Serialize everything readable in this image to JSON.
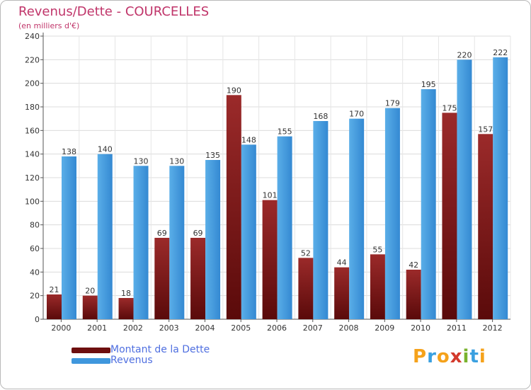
{
  "chart_data": {
    "type": "bar",
    "title": "Revenus/Dette - COURCELLES",
    "subtitle": "(en milliers d'€)",
    "categories": [
      "2000",
      "2001",
      "2002",
      "2003",
      "2004",
      "2005",
      "2006",
      "2007",
      "2008",
      "2009",
      "2010",
      "2011",
      "2012"
    ],
    "series": [
      {
        "name": "Montant de la Dette",
        "color": "#8b1a1a",
        "values": [
          21,
          20,
          18,
          69,
          69,
          190,
          101,
          52,
          44,
          55,
          42,
          175,
          157
        ]
      },
      {
        "name": "Revenus",
        "color": "#3f97dd",
        "values": [
          138,
          140,
          130,
          130,
          135,
          148,
          155,
          168,
          170,
          179,
          195,
          220,
          222
        ]
      }
    ],
    "ylim": [
      0,
      240
    ],
    "yticks": [
      0,
      20,
      40,
      60,
      80,
      100,
      120,
      140,
      160,
      180,
      200,
      220,
      240
    ],
    "grid": true,
    "legend_position": "bottom-left"
  },
  "logo": {
    "text": "Proxiti",
    "letters": [
      {
        "ch": "P",
        "color": "#f5a21b"
      },
      {
        "ch": "r",
        "color": "#3aa0e0"
      },
      {
        "ch": "o",
        "color": "#f5a21b"
      },
      {
        "ch": "x",
        "color": "#d33a2c"
      },
      {
        "ch": "i",
        "color": "#7ab32e"
      },
      {
        "ch": "t",
        "color": "#3aa0e0"
      },
      {
        "ch": "i",
        "color": "#f5a21b"
      }
    ]
  }
}
